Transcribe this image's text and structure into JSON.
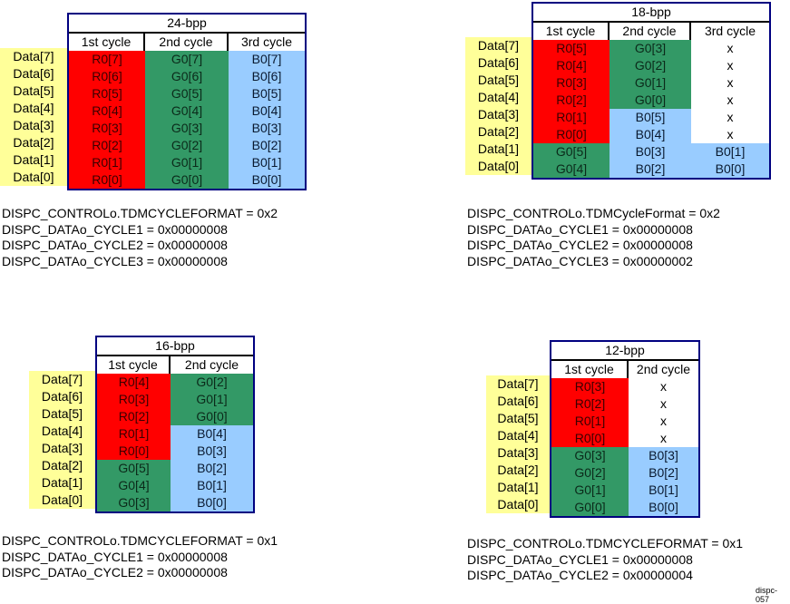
{
  "colors": {
    "red": "#ff0000",
    "green": "#339966",
    "blue": "#99ccff",
    "yellow": "#ffff99",
    "border": "#000080"
  },
  "row_labels": [
    "Data[7]",
    "Data[6]",
    "Data[5]",
    "Data[4]",
    "Data[3]",
    "Data[2]",
    "Data[1]",
    "Data[0]"
  ],
  "diagrams": [
    {
      "id": "24bpp",
      "title": "24-bpp",
      "headers": [
        "1st cycle",
        "2nd cycle",
        "3rd cycle"
      ],
      "columns": [
        [
          [
            "R0[7]",
            "red"
          ],
          [
            "R0[6]",
            "red"
          ],
          [
            "R0[5]",
            "red"
          ],
          [
            "R0[4]",
            "red"
          ],
          [
            "R0[3]",
            "red"
          ],
          [
            "R0[2]",
            "red"
          ],
          [
            "R0[1]",
            "red"
          ],
          [
            "R0[0]",
            "red"
          ]
        ],
        [
          [
            "G0[7]",
            "green"
          ],
          [
            "G0[6]",
            "green"
          ],
          [
            "G0[5]",
            "green"
          ],
          [
            "G0[4]",
            "green"
          ],
          [
            "G0[3]",
            "green"
          ],
          [
            "G0[2]",
            "green"
          ],
          [
            "G0[1]",
            "green"
          ],
          [
            "G0[0]",
            "green"
          ]
        ],
        [
          [
            "B0[7]",
            "blue"
          ],
          [
            "B0[6]",
            "blue"
          ],
          [
            "B0[5]",
            "blue"
          ],
          [
            "B0[4]",
            "blue"
          ],
          [
            "B0[3]",
            "blue"
          ],
          [
            "B0[2]",
            "blue"
          ],
          [
            "B0[1]",
            "blue"
          ],
          [
            "B0[0]",
            "blue"
          ]
        ]
      ],
      "registers": [
        "DISPC_CONTROLo.TDMCYCLEFORMAT = 0x2",
        "DISPC_DATAo_CYCLE1 = 0x00000008",
        "DISPC_DATAo_CYCLE2 = 0x00000008",
        "DISPC_DATAo_CYCLE3 = 0x00000008"
      ]
    },
    {
      "id": "18bpp",
      "title": "18-bpp",
      "headers": [
        "1st cycle",
        "2nd cycle",
        "3rd cycle"
      ],
      "columns": [
        [
          [
            "R0[5]",
            "red"
          ],
          [
            "R0[4]",
            "red"
          ],
          [
            "R0[3]",
            "red"
          ],
          [
            "R0[2]",
            "red"
          ],
          [
            "R0[1]",
            "red"
          ],
          [
            "R0[0]",
            "red"
          ],
          [
            "G0[5]",
            "green"
          ],
          [
            "G0[4]",
            "green"
          ]
        ],
        [
          [
            "G0[3]",
            "green"
          ],
          [
            "G0[2]",
            "green"
          ],
          [
            "G0[1]",
            "green"
          ],
          [
            "G0[0]",
            "green"
          ],
          [
            "B0[5]",
            "blue"
          ],
          [
            "B0[4]",
            "blue"
          ],
          [
            "B0[3]",
            "blue"
          ],
          [
            "B0[2]",
            "blue"
          ]
        ],
        [
          [
            "x",
            "white"
          ],
          [
            "x",
            "white"
          ],
          [
            "x",
            "white"
          ],
          [
            "x",
            "white"
          ],
          [
            "x",
            "white"
          ],
          [
            "x",
            "white"
          ],
          [
            "B0[1]",
            "blue"
          ],
          [
            "B0[0]",
            "blue"
          ]
        ]
      ],
      "registers": [
        "DISPC_CONTROLo.TDMCycleFormat = 0x2",
        "DISPC_DATAo_CYCLE1 = 0x00000008",
        "DISPC_DATAo_CYCLE2 = 0x00000008",
        "DISPC_DATAo_CYCLE3 = 0x00000002"
      ]
    },
    {
      "id": "16bpp",
      "title": "16-bpp",
      "headers": [
        "1st cycle",
        "2nd cycle"
      ],
      "columns": [
        [
          [
            "R0[4]",
            "red"
          ],
          [
            "R0[3]",
            "red"
          ],
          [
            "R0[2]",
            "red"
          ],
          [
            "R0[1]",
            "red"
          ],
          [
            "R0[0]",
            "red"
          ],
          [
            "G0[5]",
            "green"
          ],
          [
            "G0[4]",
            "green"
          ],
          [
            "G0[3]",
            "green"
          ]
        ],
        [
          [
            "G0[2]",
            "green"
          ],
          [
            "G0[1]",
            "green"
          ],
          [
            "G0[0]",
            "green"
          ],
          [
            "B0[4]",
            "blue"
          ],
          [
            "B0[3]",
            "blue"
          ],
          [
            "B0[2]",
            "blue"
          ],
          [
            "B0[1]",
            "blue"
          ],
          [
            "B0[0]",
            "blue"
          ]
        ]
      ],
      "registers": [
        "DISPC_CONTROLo.TDMCYCLEFORMAT = 0x1",
        "DISPC_DATAo_CYCLE1 = 0x00000008",
        "DISPC_DATAo_CYCLE2 = 0x00000008"
      ]
    },
    {
      "id": "12bpp",
      "title": "12-bpp",
      "headers": [
        "1st cycle",
        "2nd cycle"
      ],
      "columns": [
        [
          [
            "R0[3]",
            "red"
          ],
          [
            "R0[2]",
            "red"
          ],
          [
            "R0[1]",
            "red"
          ],
          [
            "R0[0]",
            "red"
          ],
          [
            "G0[3]",
            "green"
          ],
          [
            "G0[2]",
            "green"
          ],
          [
            "G0[1]",
            "green"
          ],
          [
            "G0[0]",
            "green"
          ]
        ],
        [
          [
            "x",
            "white"
          ],
          [
            "x",
            "white"
          ],
          [
            "x",
            "white"
          ],
          [
            "x",
            "white"
          ],
          [
            "B0[3]",
            "blue"
          ],
          [
            "B0[2]",
            "blue"
          ],
          [
            "B0[1]",
            "blue"
          ],
          [
            "B0[0]",
            "blue"
          ]
        ]
      ],
      "registers": [
        "DISPC_CONTROLo.TDMCYCLEFORMAT = 0x1",
        "DISPC_DATAo_CYCLE1 = 0x00000008",
        "DISPC_DATAo_CYCLE2 = 0x00000004"
      ]
    }
  ],
  "figure_id": "dispc-057"
}
